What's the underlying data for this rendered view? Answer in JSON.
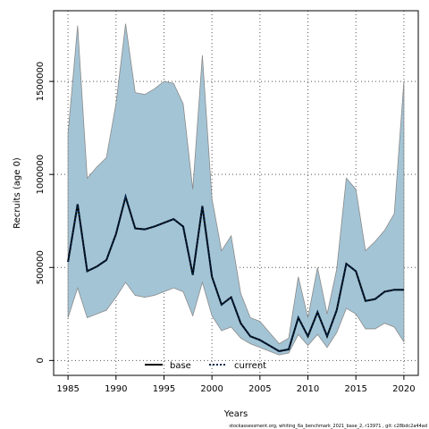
{
  "chart_data": {
    "type": "line",
    "xlabel": "Years",
    "ylabel": "Recruits (age 0)",
    "xlim": [
      1983.5,
      2021.5
    ],
    "ylim": [
      -80000,
      1880000
    ],
    "x_ticks": [
      1985,
      1990,
      1995,
      2000,
      2005,
      2010,
      2015,
      2020
    ],
    "y_ticks": [
      0,
      500000,
      1000000,
      1500000
    ],
    "grid": true,
    "grid_style": "dotted",
    "legend_position": "bottom-center",
    "colors": {
      "band_fill": "#a3c4d5",
      "band_edge": "#8a8a8a",
      "base": "#000000",
      "current": "#00264d"
    },
    "x": [
      1985,
      1986,
      1987,
      1988,
      1989,
      1990,
      1991,
      1992,
      1993,
      1994,
      1995,
      1996,
      1997,
      1998,
      1999,
      2000,
      2001,
      2002,
      2003,
      2004,
      2005,
      2006,
      2007,
      2008,
      2009,
      2010,
      2011,
      2012,
      2013,
      2014,
      2015,
      2016,
      2017,
      2018,
      2019,
      2020
    ],
    "band_upper": [
      1220000,
      1800000,
      980000,
      1040000,
      1090000,
      1380000,
      1810000,
      1440000,
      1430000,
      1460000,
      1500000,
      1490000,
      1380000,
      920000,
      1640000,
      870000,
      590000,
      670000,
      360000,
      230000,
      210000,
      150000,
      90000,
      120000,
      450000,
      230000,
      500000,
      250000,
      490000,
      980000,
      920000,
      590000,
      640000,
      700000,
      790000,
      1500000
    ],
    "band_lower": [
      230000,
      390000,
      230000,
      250000,
      270000,
      340000,
      420000,
      350000,
      340000,
      350000,
      370000,
      390000,
      370000,
      240000,
      420000,
      240000,
      160000,
      180000,
      120000,
      90000,
      70000,
      50000,
      30000,
      40000,
      140000,
      80000,
      140000,
      70000,
      150000,
      280000,
      250000,
      170000,
      170000,
      200000,
      180000,
      100000
    ],
    "series": [
      {
        "name": "base",
        "style": "solid",
        "values": [
          530000,
          840000,
          480000,
          505000,
          540000,
          680000,
          880000,
          710000,
          705000,
          720000,
          740000,
          760000,
          720000,
          460000,
          830000,
          450000,
          300000,
          340000,
          200000,
          130000,
          110000,
          80000,
          50000,
          60000,
          230000,
          130000,
          260000,
          130000,
          270000,
          520000,
          480000,
          320000,
          330000,
          370000,
          380000,
          380000
        ]
      },
      {
        "name": "current",
        "style": "dotted",
        "values": [
          530000,
          840000,
          480000,
          505000,
          540000,
          680000,
          880000,
          710000,
          705000,
          720000,
          740000,
          760000,
          720000,
          460000,
          830000,
          450000,
          300000,
          340000,
          200000,
          130000,
          110000,
          80000,
          50000,
          60000,
          230000,
          130000,
          260000,
          130000,
          270000,
          520000,
          480000,
          320000,
          330000,
          370000,
          380000,
          380000
        ]
      }
    ],
    "footnote": "stockassessment.org,  whiting_6a_benchmark_2021_base_2,  r13971 ,  git: c28bdc2a44ad"
  }
}
